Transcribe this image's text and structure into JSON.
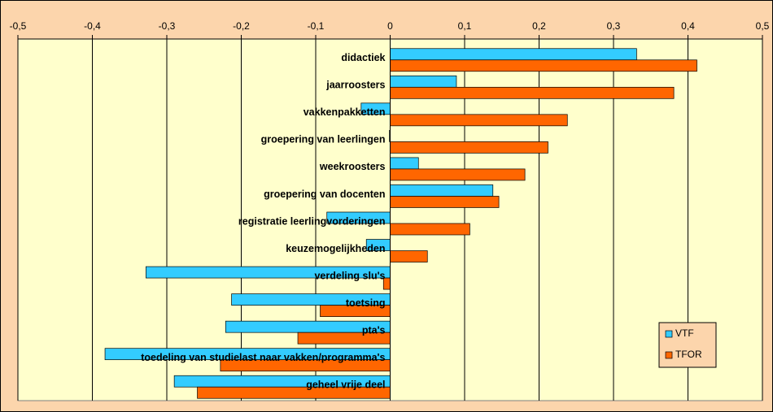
{
  "chart_data": {
    "type": "barh",
    "categories": [
      "didactiek",
      "jaarroosters",
      "vakkenpakketten",
      "groepering van leerlingen",
      "weekroosters",
      "groepering van docenten",
      "registratie leerlingvorderingen",
      "keuzemogelijkheden",
      "verdeling slu's",
      "toetsing",
      "pta's",
      "toedeling van studielast naar vakken/programma's",
      "geheel vrije deel"
    ],
    "series": [
      {
        "name": "VTF",
        "color": "#33ccff",
        "values": [
          0.331,
          0.089,
          -0.039,
          -0.001,
          0.038,
          0.138,
          -0.085,
          -0.032,
          -0.328,
          -0.213,
          -0.221,
          -0.383,
          -0.29
        ]
      },
      {
        "name": "TFOR",
        "color": "#ff6600",
        "values": [
          0.412,
          0.381,
          0.238,
          0.212,
          0.181,
          0.146,
          0.107,
          0.05,
          -0.009,
          -0.094,
          -0.124,
          -0.228,
          -0.259
        ]
      }
    ],
    "xlim": [
      -0.5,
      0.5
    ],
    "xticks": [
      {
        "value": -0.5,
        "label": "-0,5"
      },
      {
        "value": -0.4,
        "label": "-0,4"
      },
      {
        "value": -0.3,
        "label": "-0,3"
      },
      {
        "value": -0.2,
        "label": "-0,2"
      },
      {
        "value": -0.1,
        "label": "-0,1"
      },
      0,
      {
        "value": 0.1,
        "label": "0,1"
      },
      {
        "value": 0.2,
        "label": "0,2"
      },
      {
        "value": 0.3,
        "label": "0,3"
      },
      {
        "value": 0.4,
        "label": "0,4"
      },
      {
        "value": 0.5,
        "label": "0,5"
      }
    ],
    "grid": true,
    "legend": "lower right"
  }
}
